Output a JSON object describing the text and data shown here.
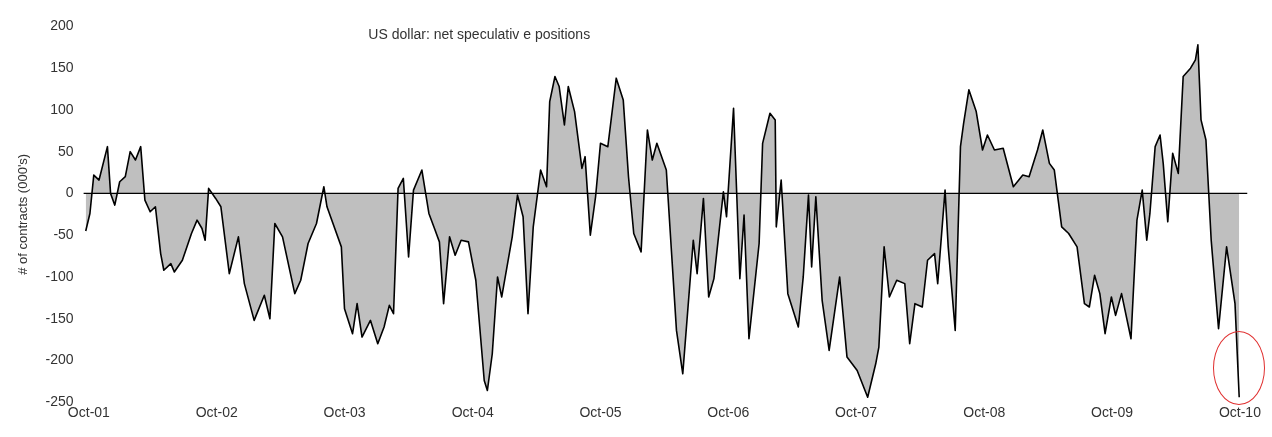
{
  "chart_data": {
    "type": "area",
    "title": "US dollar: net speculativ e positions",
    "ylabel": "# of contracts (000's)",
    "x": [
      "2001-09-22",
      "2001-10-04",
      "2001-10-15",
      "2001-10-30",
      "2001-11-23",
      "2001-12-02",
      "2001-12-14",
      "2001-12-28",
      "2002-01-13",
      "2002-01-27",
      "2002-02-11",
      "2002-02-26",
      "2002-03-10",
      "2002-03-25",
      "2002-04-09",
      "2002-04-24",
      "2002-05-03",
      "2002-05-23",
      "2002-06-02",
      "2002-06-25",
      "2002-07-21",
      "2002-08-06",
      "2002-08-20",
      "2002-08-29",
      "2002-09-08",
      "2002-09-28",
      "2002-10-13",
      "2002-11-06",
      "2002-12-02",
      "2002-12-19",
      "2003-01-16",
      "2003-02-14",
      "2003-03-02",
      "2003-03-16",
      "2003-04-07",
      "2003-05-12",
      "2003-05-29",
      "2003-06-19",
      "2003-07-13",
      "2003-08-03",
      "2003-08-12",
      "2003-09-22",
      "2003-10-01",
      "2003-10-24",
      "2003-11-06",
      "2003-11-20",
      "2003-12-14",
      "2004-01-04",
      "2004-01-22",
      "2004-02-06",
      "2004-02-18",
      "2004-03-02",
      "2004-03-17",
      "2004-04-01",
      "2004-04-15",
      "2004-05-09",
      "2004-05-29",
      "2004-06-14",
      "2004-06-28",
      "2004-07-10",
      "2004-07-27",
      "2004-08-12",
      "2004-08-29",
      "2004-09-19",
      "2004-10-10",
      "2004-11-03",
      "2004-11-12",
      "2004-11-26",
      "2004-12-11",
      "2004-12-23",
      "2005-01-22",
      "2005-02-06",
      "2005-02-22",
      "2005-03-08",
      "2005-03-23",
      "2005-04-13",
      "2005-04-30",
      "2005-05-09",
      "2005-05-24",
      "2005-06-05",
      "2005-06-20",
      "2005-07-01",
      "2005-07-19",
      "2005-08-09",
      "2005-08-18",
      "2005-09-02",
      "2005-09-17",
      "2005-10-01",
      "2005-10-22",
      "2005-11-15",
      "2005-12-05",
      "2005-12-20",
      "2006-01-04",
      "2006-01-25",
      "2006-02-12",
      "2006-02-26",
      "2006-03-11",
      "2006-04-07",
      "2006-05-06",
      "2006-05-24",
      "2006-06-23",
      "2006-07-04",
      "2006-07-22",
      "2006-08-06",
      "2006-08-21",
      "2006-09-17",
      "2006-09-26",
      "2006-10-16",
      "2006-11-03",
      "2006-11-15",
      "2006-11-29",
      "2006-12-28",
      "2007-01-07",
      "2007-01-28",
      "2007-02-12",
      "2007-02-15",
      "2007-03-01",
      "2007-03-20",
      "2007-04-19",
      "2007-05-03",
      "2007-05-18",
      "2007-05-27",
      "2007-06-08",
      "2007-06-26",
      "2007-07-16",
      "2007-08-15",
      "2007-09-05",
      "2007-10-04",
      "2007-11-03",
      "2007-11-26",
      "2007-12-05",
      "2007-12-20",
      "2008-01-04",
      "2008-01-25",
      "2008-02-17",
      "2008-03-02",
      "2008-03-17",
      "2008-04-07",
      "2008-04-22",
      "2008-05-12",
      "2008-05-21",
      "2008-06-11",
      "2008-06-20",
      "2008-07-10",
      "2008-07-25",
      "2008-08-03",
      "2008-08-18",
      "2008-09-08",
      "2008-09-26",
      "2008-10-10",
      "2008-10-30",
      "2008-11-24",
      "2008-12-23",
      "2009-01-19",
      "2009-02-06",
      "2009-03-02",
      "2009-03-17",
      "2009-04-05",
      "2009-04-19",
      "2009-05-10",
      "2009-05-30",
      "2009-06-23",
      "2009-07-14",
      "2009-07-28",
      "2009-08-12",
      "2009-08-27",
      "2009-09-11",
      "2009-09-29",
      "2009-10-11",
      "2009-10-28",
      "2009-11-24",
      "2009-12-11",
      "2009-12-26",
      "2010-01-08",
      "2010-01-17",
      "2010-02-01",
      "2010-02-15",
      "2010-02-24",
      "2010-03-09",
      "2010-03-23",
      "2010-04-08",
      "2010-04-22",
      "2010-05-13",
      "2010-05-27",
      "2010-06-03",
      "2010-06-12",
      "2010-06-26",
      "2010-07-11",
      "2010-08-01",
      "2010-08-24",
      "2010-09-17",
      "2010-09-29"
    ],
    "series": [
      {
        "color": "#000000",
        "values": [
          -45,
          -24,
          22,
          16,
          56,
          0,
          -14,
          14,
          20,
          50,
          40,
          56,
          -8,
          -22,
          -16,
          -72,
          -92,
          -84,
          -94,
          -80,
          -48,
          -32,
          -42,
          -56,
          6,
          -6,
          -16,
          -96,
          -52,
          -108,
          -152,
          -122,
          -150,
          -36,
          -52,
          -120,
          -104,
          -60,
          -36,
          8,
          -16,
          -64,
          -138,
          -168,
          -132,
          -172,
          -152,
          -180,
          -160,
          -134,
          -144,
          6,
          18,
          -76,
          4,
          28,
          -24,
          -42,
          -58,
          -132,
          -52,
          -74,
          -56,
          -58,
          -104,
          -224,
          -236,
          -192,
          -100,
          -124,
          -52,
          -2,
          -28,
          -144,
          -40,
          28,
          8,
          110,
          140,
          128,
          82,
          128,
          98,
          30,
          44,
          -50,
          -4,
          60,
          56,
          138,
          112,
          20,
          -48,
          -70,
          76,
          40,
          60,
          28,
          -164,
          -216,
          -56,
          -96,
          -6,
          -124,
          -102,
          2,
          -28,
          102,
          -102,
          -26,
          -174,
          -60,
          60,
          96,
          88,
          -40,
          16,
          -120,
          -160,
          -100,
          -2,
          -88,
          -4,
          -128,
          -188,
          -100,
          -196,
          -212,
          -244,
          -204,
          -184,
          -64,
          -124,
          -104,
          -108,
          -180,
          -132,
          -136,
          -80,
          -72,
          -108,
          4,
          -64,
          -164,
          56,
          84,
          124,
          98,
          52,
          70,
          52,
          54,
          8,
          22,
          20,
          52,
          76,
          36,
          28,
          -40,
          -48,
          -64,
          -132,
          -136,
          -98,
          -120,
          -168,
          -124,
          -146,
          -120,
          -174,
          -32,
          4,
          -56,
          -24,
          56,
          70,
          36,
          -34,
          48,
          24,
          140,
          150,
          160,
          178,
          88,
          64,
          -56,
          -162,
          -64,
          -132,
          -244
        ]
      }
    ],
    "xlim": [
      "2001-09-16",
      "2010-10-22"
    ],
    "xticks": [
      {
        "value": "2001-10-01",
        "label": "Oct-01"
      },
      {
        "value": "2002-10-01",
        "label": "Oct-02"
      },
      {
        "value": "2003-10-01",
        "label": "Oct-03"
      },
      {
        "value": "2004-10-01",
        "label": "Oct-04"
      },
      {
        "value": "2005-10-01",
        "label": "Oct-05"
      },
      {
        "value": "2006-10-01",
        "label": "Oct-06"
      },
      {
        "value": "2007-10-01",
        "label": "Oct-07"
      },
      {
        "value": "2008-10-01",
        "label": "Oct-08"
      },
      {
        "value": "2009-10-01",
        "label": "Oct-09"
      },
      {
        "value": "2010-10-01",
        "label": "Oct-10"
      }
    ],
    "ylim": [
      -250,
      200
    ],
    "yticks": [
      -250,
      -200,
      -150,
      -100,
      -50,
      0,
      50,
      100,
      150,
      200
    ],
    "ref_lines": [
      {
        "axis": "y",
        "value": 0,
        "color": "#000000"
      }
    ],
    "legend": false
  }
}
